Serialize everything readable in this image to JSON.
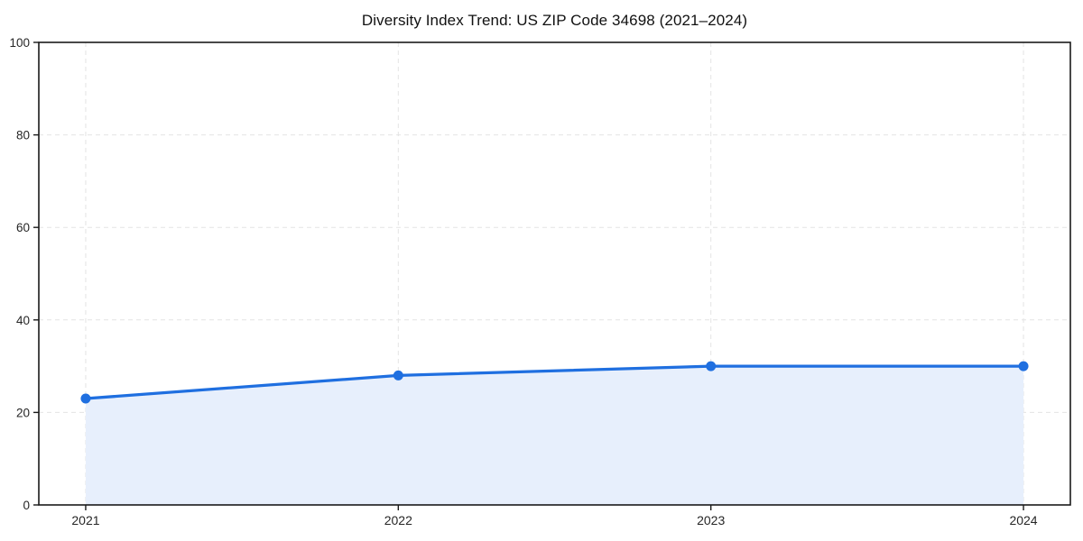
{
  "chart_data": {
    "type": "line",
    "title": "Diversity Index Trend: US ZIP Code 34698 (2021–2024)",
    "xlabel": "",
    "ylabel": "",
    "categories": [
      2021,
      2022,
      2023,
      2024
    ],
    "xtick_labels": [
      "2021",
      "2022",
      "2023",
      "2024"
    ],
    "series": [
      {
        "name": "Diversity Index",
        "values": [
          23,
          28,
          30,
          30
        ]
      }
    ],
    "ylim": [
      0,
      100
    ],
    "yticks": [
      0,
      20,
      40,
      60,
      80,
      100
    ],
    "ytick_labels": [
      "0",
      "20",
      "40",
      "60",
      "80",
      "100"
    ],
    "grid": true,
    "grid_style": "dashed",
    "legend": "none",
    "area_fill": true,
    "marker": "circle",
    "colors": {
      "line": "#1f6fe0",
      "marker": "#1f6fe0",
      "area_fill": "#e7effc",
      "grid": "#e4e4e4",
      "axis": "#1a1a1a",
      "tick_label": "#262626",
      "title": "#111111",
      "background": "#ffffff"
    }
  }
}
